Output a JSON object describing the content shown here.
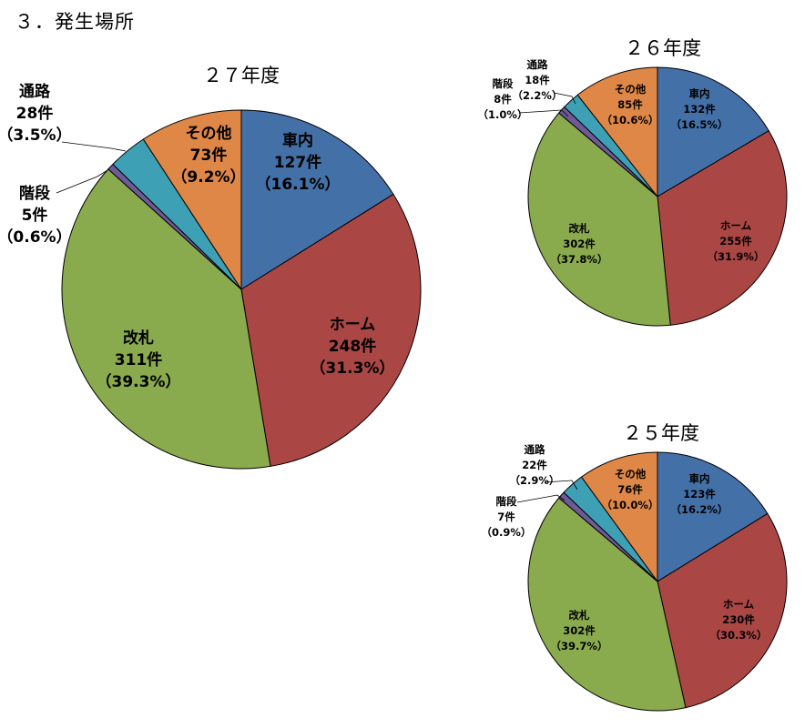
{
  "page_title": "３．発生場所",
  "colors": {
    "車内": "#4470a8",
    "ホーム": "#aa4745",
    "改札": "#8aaa4e",
    "階段": "#6e5a96",
    "通路": "#3ea0b5",
    "その他": "#de8746"
  },
  "chart_data": [
    {
      "type": "pie",
      "title": "２７年度",
      "slices": [
        {
          "name": "車内",
          "count_label": "127件",
          "pct_label": "（16.1%）",
          "value": 16.1
        },
        {
          "name": "ホーム",
          "count_label": "248件",
          "pct_label": "（31.3%）",
          "value": 31.3
        },
        {
          "name": "改札",
          "count_label": "311件",
          "pct_label": "（39.3%）",
          "value": 39.3
        },
        {
          "name": "階段",
          "count_label": "5件",
          "pct_label": "（0.6%）",
          "value": 0.6
        },
        {
          "name": "通路",
          "count_label": "28件",
          "pct_label": "（3.5%）",
          "value": 3.5
        },
        {
          "name": "その他",
          "count_label": "73件",
          "pct_label": "（9.2%）",
          "value": 9.2
        }
      ]
    },
    {
      "type": "pie",
      "title": "２６年度",
      "slices": [
        {
          "name": "車内",
          "count_label": "132件",
          "pct_label": "（16.5%）",
          "value": 16.5
        },
        {
          "name": "ホーム",
          "count_label": "255件",
          "pct_label": "（31.9%）",
          "value": 31.9
        },
        {
          "name": "改札",
          "count_label": "302件",
          "pct_label": "（37.8%）",
          "value": 37.8
        },
        {
          "name": "階段",
          "count_label": "8件",
          "pct_label": "（1.0%）",
          "value": 1.0
        },
        {
          "name": "通路",
          "count_label": "18件",
          "pct_label": "（2.2%）",
          "value": 2.2
        },
        {
          "name": "その他",
          "count_label": "85件",
          "pct_label": "（10.6%）",
          "value": 10.6
        }
      ]
    },
    {
      "type": "pie",
      "title": "２５年度",
      "slices": [
        {
          "name": "車内",
          "count_label": "123件",
          "pct_label": "（16.2%）",
          "value": 16.2
        },
        {
          "name": "ホーム",
          "count_label": "230件",
          "pct_label": "（30.3%）",
          "value": 30.3
        },
        {
          "name": "改札",
          "count_label": "302件",
          "pct_label": "（39.7%）",
          "value": 39.7
        },
        {
          "name": "階段",
          "count_label": "7件",
          "pct_label": "（0.9%）",
          "value": 0.9
        },
        {
          "name": "通路",
          "count_label": "22件",
          "pct_label": "（2.9%）",
          "value": 2.9
        },
        {
          "name": "その他",
          "count_label": "76件",
          "pct_label": "（10.0%）",
          "value": 10.0
        }
      ]
    }
  ]
}
